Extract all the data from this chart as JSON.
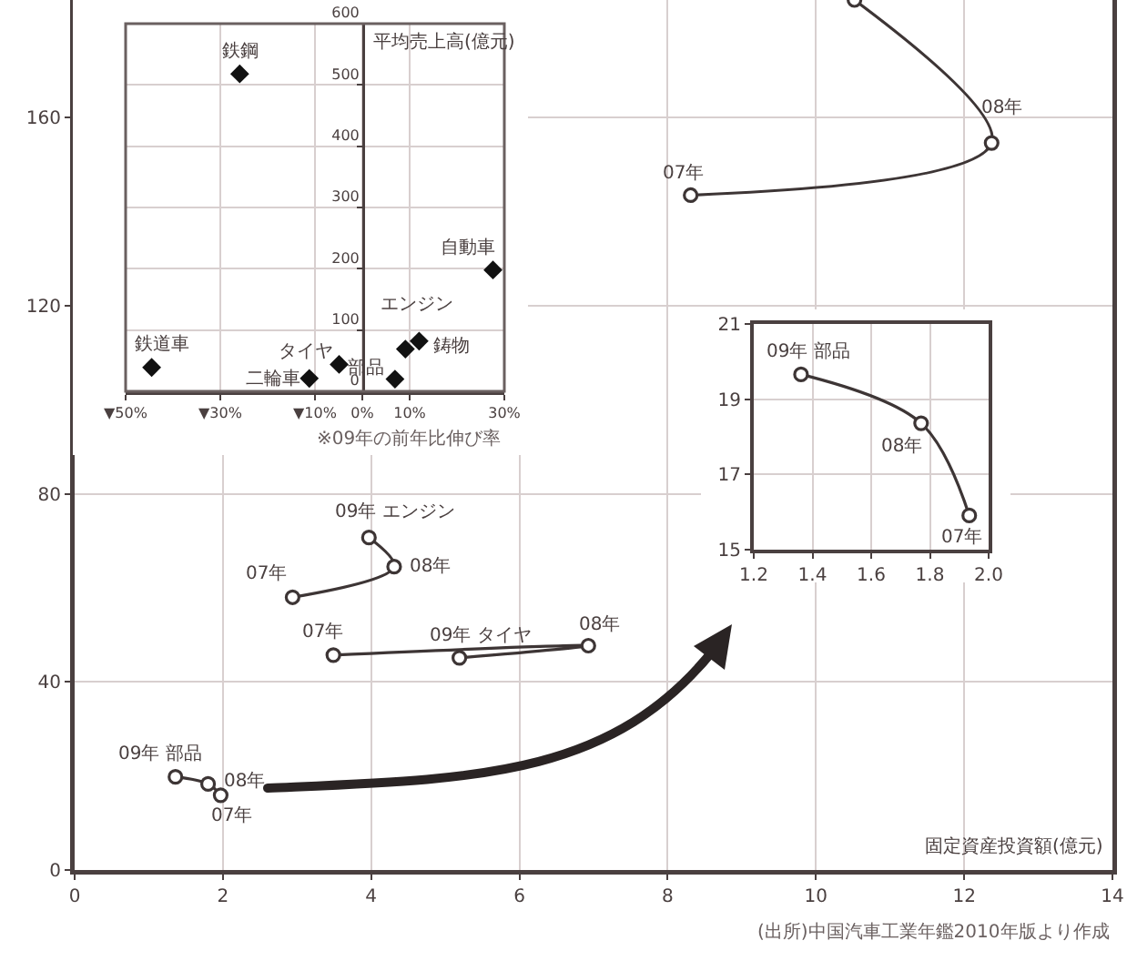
{
  "chart_data": [
    {
      "type": "line",
      "xlabel": "固定資産投資額(億元)",
      "grid": true,
      "marker": "circle",
      "series": [
        {
          "color": "#3d3535",
          "x": [
            1.97,
            1.8,
            1.36
          ],
          "values": [
            15.9,
            18.3,
            19.8
          ]
        },
        {
          "color": "#3d3535",
          "x": [
            2.94,
            4.31,
            3.97
          ],
          "values": [
            58.0,
            64.5,
            70.7
          ]
        },
        {
          "color": "#3d3535",
          "x": [
            3.49,
            6.93,
            5.19
          ],
          "values": [
            45.7,
            47.7,
            45.1
          ]
        },
        {
          "color": "#3d3535",
          "x": [
            8.31,
            12.37,
            10.52
          ],
          "values": [
            143.5,
            154.6,
            185
          ]
        }
      ],
      "xlim": [
        0,
        14
      ],
      "ylim": [
        0,
        185
      ],
      "xticks": [
        0,
        2,
        4,
        6,
        8,
        10,
        12,
        14
      ],
      "yticks": [
        0,
        40,
        80,
        120,
        160
      ],
      "annotations": [
        {
          "text": "09年 部品",
          "x": 1.36,
          "y": 19.8
        },
        {
          "text": "08年",
          "x": 1.8,
          "y": 18.3
        },
        {
          "text": "07年",
          "x": 1.97,
          "y": 15.9
        },
        {
          "text": "07年",
          "x": 2.94,
          "y": 58.0
        },
        {
          "text": "08年",
          "x": 4.31,
          "y": 64.5
        },
        {
          "text": "09年 エンジン",
          "x": 3.97,
          "y": 70.7
        },
        {
          "text": "07年",
          "x": 3.49,
          "y": 45.7
        },
        {
          "text": "08年",
          "x": 6.93,
          "y": 47.7
        },
        {
          "text": "09年 タイヤ",
          "x": 5.19,
          "y": 45.1
        },
        {
          "text": "07年",
          "x": 8.31,
          "y": 143.5
        },
        {
          "text": "08年",
          "x": 12.37,
          "y": 154.6
        },
        "(出所)中国汽車工業年鑑2010年版より作成"
      ]
    },
    {
      "type": "scatter",
      "ylabel": "平均売上高(億元)",
      "grid": true,
      "marker": "diamond",
      "series": [
        {
          "color": "#111111",
          "x": [
            -44.5,
            -25.9,
            -11.2,
            -4.9,
            6.9,
            9.1,
            12.0,
            27.6
          ],
          "values": [
            39,
            518,
            21,
            44,
            20,
            69,
            82,
            198
          ]
        }
      ],
      "xlim": [
        -50,
        30
      ],
      "ylim": [
        0,
        600
      ],
      "xticks": [
        {
          "value": -50,
          "label": "▼50%"
        },
        {
          "value": -30,
          "label": "▼30%"
        },
        {
          "value": -10,
          "label": "▼10%"
        },
        {
          "value": 0,
          "label": "0%"
        },
        {
          "value": 10,
          "label": "10%"
        },
        {
          "value": 30,
          "label": "30%"
        }
      ],
      "yticks": [
        0,
        100,
        200,
        300,
        400,
        500,
        600
      ],
      "annotations": [
        {
          "text": "鉄道車",
          "x": -44.5,
          "y": 39
        },
        {
          "text": "鉄鋼",
          "x": -25.9,
          "y": 518
        },
        {
          "text": "二輪車",
          "x": -11.2,
          "y": 21
        },
        {
          "text": "タイヤ",
          "x": -4.9,
          "y": 44
        },
        {
          "text": "部品",
          "x": 6.9,
          "y": 20
        },
        {
          "text": "エンジン",
          "x": 9.1,
          "y": 69
        },
        {
          "text": "鋳物",
          "x": 12.0,
          "y": 82
        },
        {
          "text": "自動車",
          "x": 27.6,
          "y": 198
        },
        "※09年の前年比伸び率"
      ]
    },
    {
      "type": "line",
      "grid": true,
      "marker": "circle",
      "series": [
        {
          "color": "#3d3535",
          "x": [
            1.934,
            1.77,
            1.361
          ],
          "values": [
            15.91,
            18.36,
            19.66
          ]
        }
      ],
      "xlim": [
        1.2,
        2.0
      ],
      "ylim": [
        15,
        21
      ],
      "xticks": [
        1.2,
        1.4,
        1.6,
        1.8,
        {
          "value": 2,
          "label": "2.0"
        }
      ],
      "yticks": [
        15,
        17,
        19,
        21
      ],
      "annotations": [
        {
          "text": "09年 部品",
          "x": 1.361,
          "y": 19.66
        },
        {
          "text": "08年",
          "x": 1.77,
          "y": 18.36
        },
        {
          "text": "07年",
          "x": 1.934,
          "y": 15.91
        }
      ]
    }
  ]
}
